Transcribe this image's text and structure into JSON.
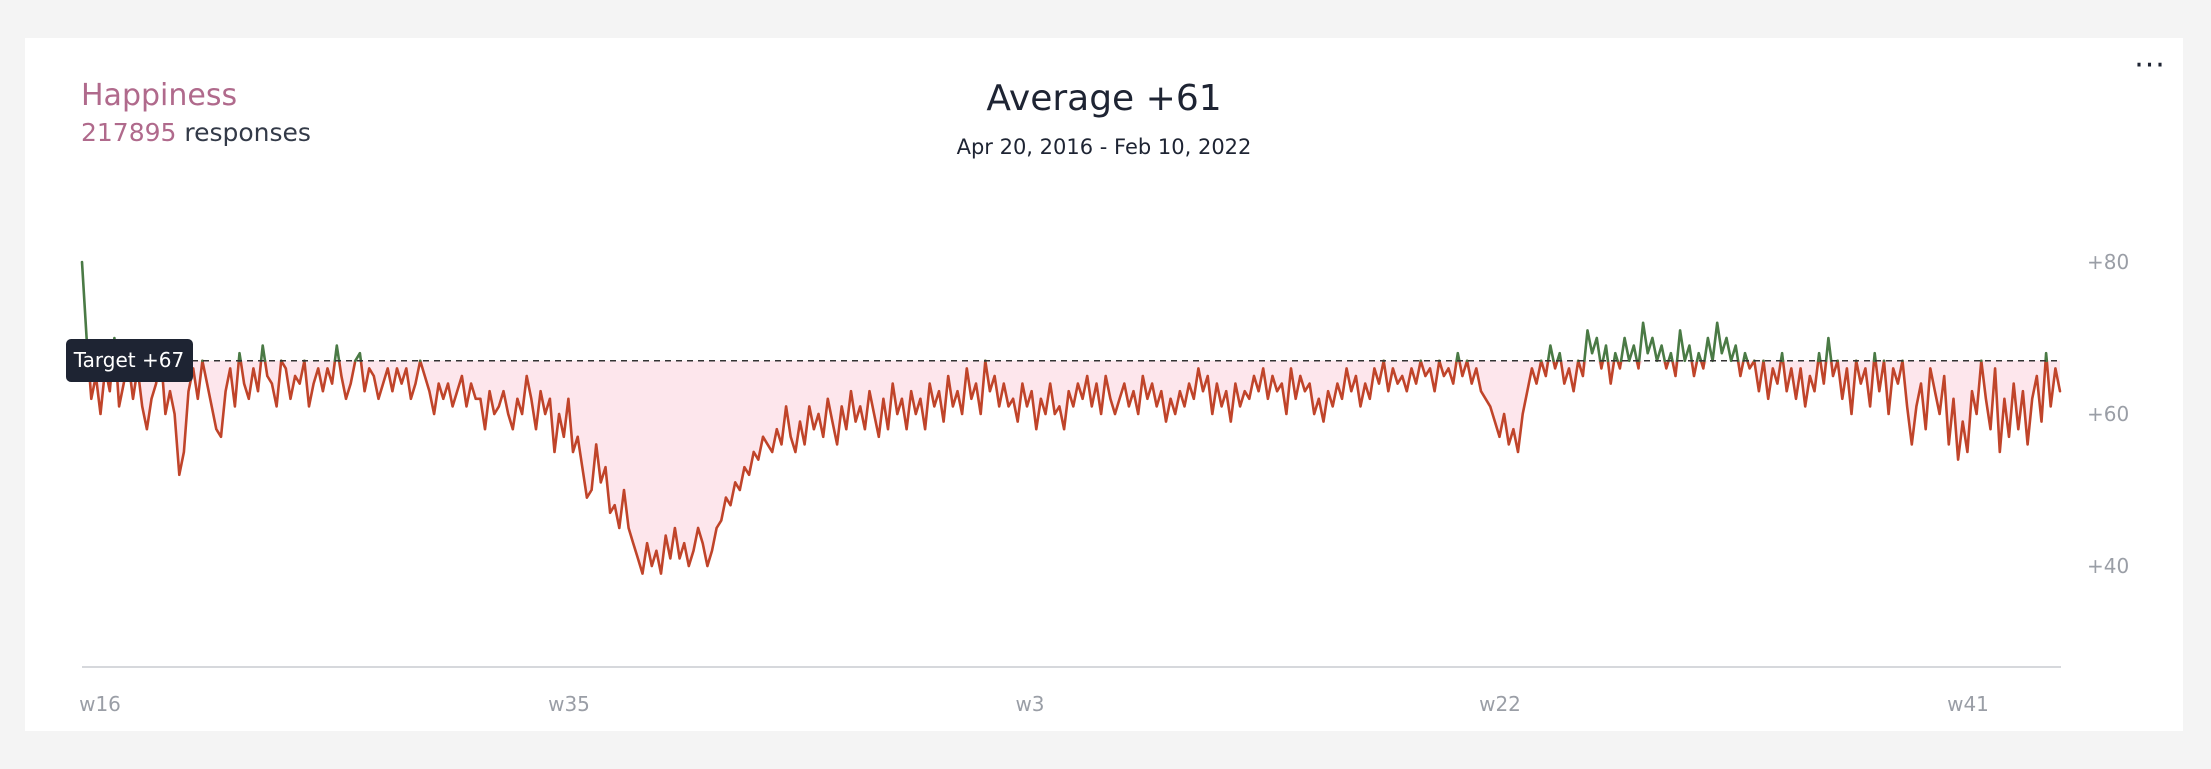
{
  "header": {
    "metric_name": "Happiness",
    "response_count": "217895",
    "response_suffix": " responses",
    "title": "Average +61",
    "date_range": "Apr 20, 2016 - Feb 10, 2022"
  },
  "menu": {
    "icon": "more-horizontal-icon",
    "label": "···"
  },
  "colors": {
    "above_target": "#4a7a45",
    "below_target": "#c0442a",
    "deficit_fill": "#fde6ec",
    "target_line": "#333333",
    "tooltip_bg": "#1e2433"
  },
  "chart_data": {
    "type": "line",
    "title": "Average +61",
    "subtitle": "Apr 20, 2016 - Feb 10, 2022",
    "xlabel": "",
    "ylabel": "",
    "x_tick_labels": [
      "w16",
      "w35",
      "w3",
      "w22",
      "w41"
    ],
    "y_tick_labels": [
      "+80",
      "+60",
      "+40"
    ],
    "y_ticks": [
      80,
      60,
      40
    ],
    "ylim": [
      27,
      83
    ],
    "target": {
      "value": 67,
      "label": "Target +67"
    },
    "grid": false,
    "series": [
      {
        "values": [
          80,
          70,
          62,
          65,
          60,
          66,
          63,
          70,
          61,
          64,
          67,
          62,
          66,
          61,
          58,
          62,
          64,
          68,
          60,
          63,
          60,
          52,
          55,
          63,
          66,
          62,
          67,
          64,
          61,
          58,
          57,
          63,
          66,
          61,
          68,
          64,
          62,
          66,
          63,
          69,
          65,
          64,
          61,
          67,
          66,
          62,
          65,
          64,
          67,
          61,
          64,
          66,
          63,
          66,
          64,
          69,
          65,
          62,
          64,
          67,
          68,
          63,
          66,
          65,
          62,
          64,
          66,
          63,
          66,
          64,
          66,
          62,
          64,
          67,
          65,
          63,
          60,
          64,
          62,
          64,
          61,
          63,
          65,
          61,
          64,
          62,
          62,
          58,
          63,
          60,
          61,
          63,
          60,
          58,
          62,
          60,
          65,
          62,
          58,
          63,
          60,
          62,
          55,
          60,
          57,
          62,
          55,
          57,
          53,
          49,
          50,
          56,
          51,
          53,
          47,
          48,
          45,
          50,
          45,
          43,
          41,
          39,
          43,
          40,
          42,
          39,
          44,
          41,
          45,
          41,
          43,
          40,
          42,
          45,
          43,
          40,
          42,
          45,
          46,
          49,
          48,
          51,
          50,
          53,
          52,
          55,
          54,
          57,
          56,
          55,
          58,
          56,
          61,
          57,
          55,
          59,
          56,
          61,
          58,
          60,
          57,
          62,
          59,
          56,
          61,
          58,
          63,
          59,
          61,
          58,
          63,
          60,
          57,
          62,
          58,
          64,
          60,
          62,
          58,
          63,
          60,
          62,
          58,
          64,
          61,
          63,
          59,
          65,
          61,
          63,
          60,
          66,
          62,
          64,
          60,
          67,
          63,
          65,
          61,
          64,
          61,
          62,
          59,
          64,
          61,
          63,
          58,
          62,
          60,
          64,
          60,
          61,
          58,
          63,
          61,
          64,
          62,
          65,
          61,
          64,
          60,
          65,
          62,
          60,
          62,
          64,
          61,
          63,
          60,
          65,
          62,
          64,
          61,
          63,
          59,
          62,
          60,
          63,
          61,
          64,
          62,
          66,
          63,
          65,
          60,
          64,
          61,
          63,
          59,
          64,
          61,
          63,
          62,
          65,
          63,
          66,
          62,
          65,
          63,
          64,
          60,
          66,
          62,
          65,
          63,
          64,
          60,
          62,
          59,
          63,
          61,
          64,
          62,
          66,
          63,
          65,
          61,
          64,
          62,
          66,
          64,
          67,
          63,
          66,
          64,
          65,
          63,
          66,
          64,
          67,
          65,
          66,
          63,
          67,
          65,
          66,
          64,
          68,
          65,
          67,
          64,
          66,
          63,
          62,
          61,
          59,
          57,
          60,
          56,
          58,
          55,
          60,
          63,
          66,
          64,
          67,
          65,
          69,
          66,
          68,
          64,
          66,
          63,
          67,
          65,
          71,
          68,
          70,
          66,
          69,
          64,
          68,
          66,
          70,
          67,
          69,
          66,
          72,
          68,
          70,
          67,
          69,
          66,
          68,
          65,
          71,
          67,
          69,
          65,
          68,
          66,
          70,
          67,
          72,
          68,
          70,
          67,
          69,
          65,
          68,
          66,
          67,
          63,
          67,
          62,
          66,
          64,
          68,
          63,
          66,
          62,
          66,
          61,
          65,
          63,
          68,
          64,
          70,
          65,
          67,
          62,
          66,
          60,
          67,
          64,
          66,
          61,
          68,
          63,
          67,
          60,
          66,
          64,
          67,
          61,
          56,
          61,
          64,
          58,
          66,
          63,
          60,
          65,
          56,
          62,
          54,
          59,
          55,
          63,
          60,
          67,
          62,
          58,
          66,
          55,
          62,
          57,
          64,
          58,
          63,
          56,
          62,
          65,
          59,
          68,
          61,
          66,
          63
        ]
      }
    ]
  }
}
